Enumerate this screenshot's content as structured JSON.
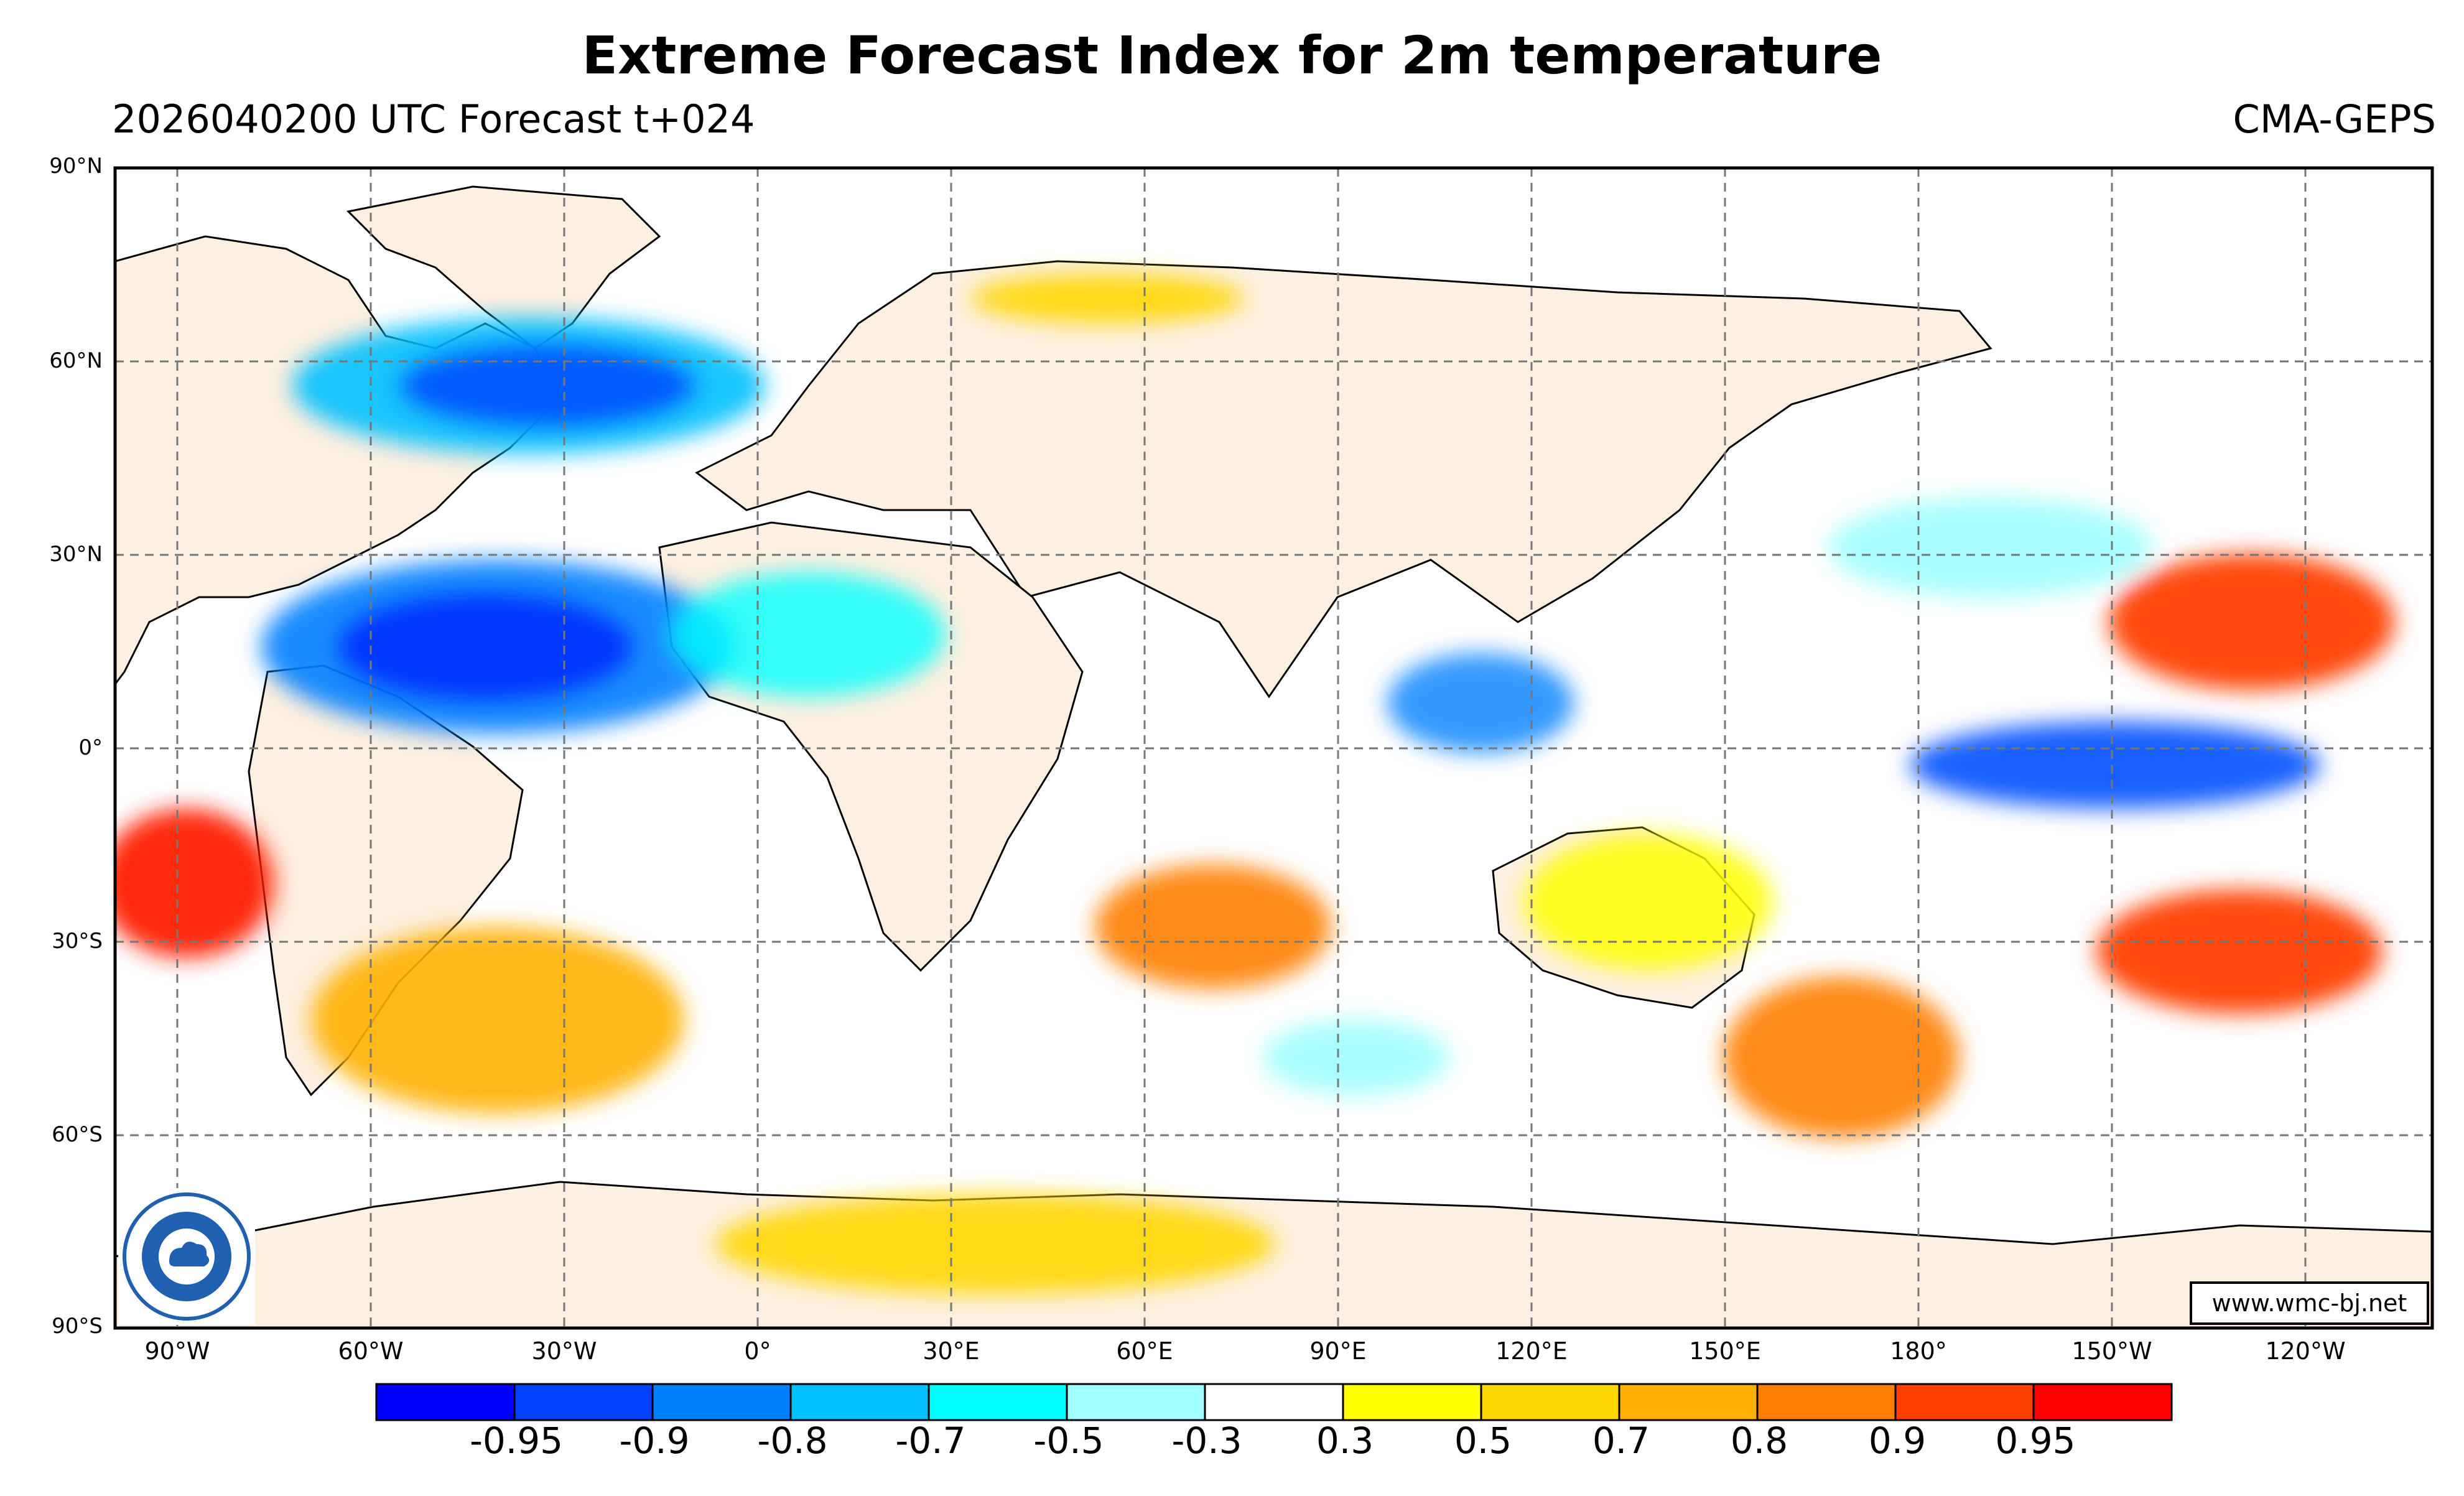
{
  "header": {
    "title": "Extreme Forecast Index for 2m temperature",
    "run_info": "2026040200 UTC Forecast t+024",
    "model": "CMA-GEPS"
  },
  "map": {
    "projection": "equirectangular",
    "lat_labels": [
      "90°N",
      "60°N",
      "30°N",
      "0°",
      "30°S",
      "60°S",
      "90°S"
    ],
    "lon_labels": [
      "90°W",
      "60°W",
      "30°W",
      "0°",
      "30°E",
      "60°E",
      "90°E",
      "120°E",
      "150°E",
      "180°",
      "150°W",
      "120°W"
    ],
    "land_color": "#fdf0e0",
    "ocean_color": "#ffffff",
    "gridline_style": "dashed grey"
  },
  "legend": {
    "colors": [
      "#0000ff",
      "#0040ff",
      "#0080ff",
      "#00c0ff",
      "#00ffff",
      "#a0ffff",
      "#ffffff",
      "#ffff00",
      "#ffd700",
      "#ffb000",
      "#ff7f00",
      "#ff3f00",
      "#ff0000"
    ],
    "tick_labels": [
      "-0.95",
      "-0.9",
      "-0.8",
      "-0.7",
      "-0.5",
      "-0.3",
      "0.3",
      "0.5",
      "0.7",
      "0.8",
      "0.9",
      "0.95"
    ]
  },
  "footer": {
    "credit": "www.wmc-bj.net"
  },
  "logo": {
    "icon": "cma-logo-icon"
  }
}
